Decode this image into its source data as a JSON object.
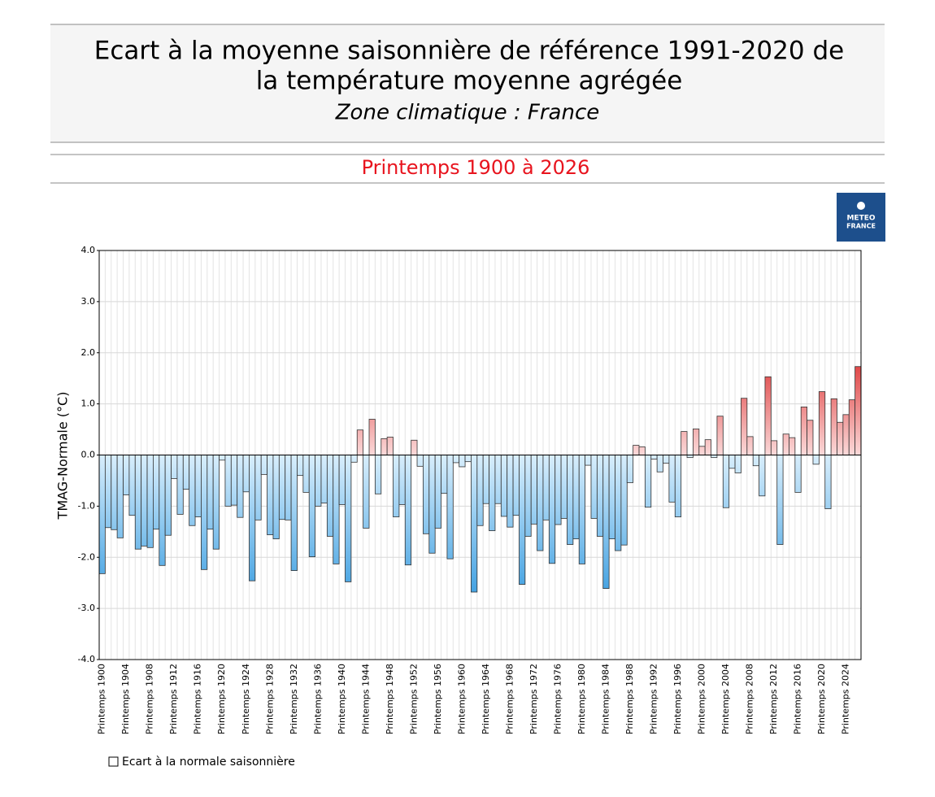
{
  "chart_data": {
    "type": "bar",
    "title": [
      "Ecart à la moyenne saisonnière  de référence 1991-2020  de",
      "la température moyenne  agrégée"
    ],
    "subtitle": "Zone climatique : France",
    "period": "Printemps 1900 à 2026",
    "logo": [
      "METEO",
      "FRANCE"
    ],
    "y_label": "TMAG-Normale (°C)",
    "legend": "Ecart à la normale saisonnière",
    "categories": [
      "Printemps 1900",
      null,
      null,
      null,
      "Printemps 1904",
      null,
      null,
      null,
      "Printemps 1908",
      null,
      null,
      null,
      "Printemps 1912",
      null,
      null,
      null,
      "Printemps 1916",
      null,
      null,
      null,
      "Printemps 1920",
      null,
      null,
      null,
      "Printemps 1924",
      null,
      null,
      null,
      "Printemps 1928",
      null,
      null,
      null,
      "Printemps 1932",
      null,
      null,
      null,
      "Printemps 1936",
      null,
      null,
      null,
      "Printemps 1940",
      null,
      null,
      null,
      "Printemps 1944",
      null,
      null,
      null,
      "Printemps 1948",
      null,
      null,
      null,
      "Printemps 1952",
      null,
      null,
      null,
      "Printemps 1956",
      null,
      null,
      null,
      "Printemps 1960",
      null,
      null,
      null,
      "Printemps 1964",
      null,
      null,
      null,
      "Printemps 1968",
      null,
      null,
      null,
      "Printemps 1972",
      null,
      null,
      null,
      "Printemps 1976",
      null,
      null,
      null,
      "Printemps 1980",
      null,
      null,
      null,
      "Printemps 1984",
      null,
      null,
      null,
      "Printemps 1988",
      null,
      null,
      null,
      "Printemps 1992",
      null,
      null,
      null,
      "Printemps 1996",
      null,
      null,
      null,
      "Printemps 2000",
      null,
      null,
      null,
      "Printemps 2004",
      null,
      null,
      null,
      "Printemps 2008",
      null,
      null,
      null,
      "Printemps 2012",
      null,
      null,
      null,
      "Printemps 2016",
      null,
      null,
      null,
      "Printemps 2020",
      null,
      null,
      null,
      "Printemps 2024",
      null,
      null
    ],
    "values": [
      -2.32,
      -1.42,
      -1.46,
      -1.62,
      -0.78,
      -1.18,
      -1.84,
      -1.78,
      -1.81,
      -1.45,
      -2.16,
      -1.57,
      -0.46,
      -1.16,
      -0.67,
      -1.38,
      -1.21,
      -2.24,
      -1.45,
      -1.84,
      -0.1,
      -1.0,
      -0.98,
      -1.22,
      -0.72,
      -2.46,
      -1.27,
      -0.38,
      -1.56,
      -1.64,
      -1.26,
      -1.27,
      -2.26,
      -0.4,
      -0.73,
      -1.99,
      -1.0,
      -0.94,
      -1.59,
      -2.13,
      -0.97,
      -2.48,
      -0.14,
      0.49,
      -1.43,
      0.7,
      -0.76,
      0.32,
      0.35,
      -1.21,
      -0.97,
      -2.15,
      0.29,
      -0.22,
      -1.54,
      -1.92,
      -1.43,
      -0.75,
      -2.03,
      -0.15,
      -0.23,
      -0.13,
      -2.68,
      -1.38,
      -0.95,
      -1.48,
      -0.95,
      -1.2,
      -1.41,
      -1.18,
      -2.53,
      -1.59,
      -1.35,
      -1.87,
      -1.27,
      -2.12,
      -1.36,
      -1.24,
      -1.75,
      -1.64,
      -2.13,
      -0.2,
      -1.24,
      -1.59,
      -2.61,
      -1.64,
      -1.87,
      -1.76,
      -0.54,
      0.19,
      0.16,
      -1.02,
      -0.08,
      -0.33,
      -0.16,
      -0.92,
      -1.21,
      0.46,
      -0.05,
      0.51,
      0.17,
      0.3,
      -0.05,
      0.76,
      -1.03,
      -0.26,
      -0.35,
      1.11,
      0.36,
      -0.21,
      -0.8,
      1.53,
      0.28,
      -1.75,
      0.41,
      0.34,
      -0.73,
      0.94,
      0.68,
      -0.18,
      1.24,
      -1.05,
      1.1,
      0.64,
      0.79,
      1.08,
      1.73
    ],
    "negative_colors": [
      "#d8eefc",
      "#3a9de0"
    ],
    "positive_colors": [
      "#fbdada",
      "#e04848"
    ],
    "ylim": [
      -4,
      4
    ],
    "yticks": [
      {
        "value": -4,
        "label": "-4.0"
      },
      {
        "value": -3,
        "label": "-3.0"
      },
      {
        "value": -2,
        "label": "-2.0"
      },
      {
        "value": -1,
        "label": "-1.0"
      },
      {
        "value": 0,
        "label": "0.0"
      },
      {
        "value": 1,
        "label": "1.0"
      },
      {
        "value": 2,
        "label": "2.0"
      },
      {
        "value": 3,
        "label": "3.0"
      },
      {
        "value": 4,
        "label": "4.0"
      }
    ],
    "grid": true
  }
}
